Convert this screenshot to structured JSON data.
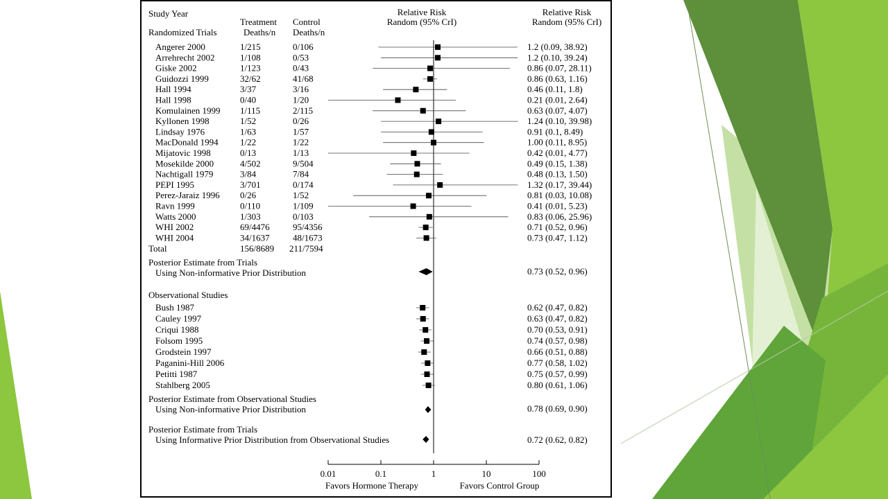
{
  "header": {
    "study_year": "Study Year",
    "randomized_trials": "Randomized Trials",
    "treatment_line1": "Treatment",
    "treatment_line2": "Deaths/n",
    "control_line1": "Control",
    "control_line2": "Deaths/n",
    "rr_center_line1": "Relative Risk",
    "rr_center_line2": "Random (95% CrI)",
    "rr_right_line1": "Relative Risk",
    "rr_right_line2": "Random (95% CrI)"
  },
  "sections": {
    "total_label": "Total",
    "total_treatment": "156/8689",
    "total_control": "211/7594",
    "posterior_trials_line1": "Posterior Estimate from Trials",
    "posterior_trials_line2": "Using Non-informative Prior Distribution",
    "posterior_trials_ci": "0.73 (0.52, 0.96)",
    "observational_header": "Observational Studies",
    "posterior_obs_line1": "Posterior Estimate from Observational Studies",
    "posterior_obs_line2": "Using Non-informative Prior Distribution",
    "posterior_obs_ci": "0.78 (0.69, 0.90)",
    "posterior_inf_line1": "Posterior Estimate from Trials",
    "posterior_inf_line2": "Using Informative Prior Distribution from Observational Studies",
    "posterior_inf_ci": "0.72 (0.62, 0.82)"
  },
  "axis": {
    "ticks": [
      "0.01",
      "0.1",
      "1",
      "10",
      "100"
    ],
    "left_label": "Favors Hormone Therapy",
    "right_label": "Favors Control Group"
  },
  "chart_data": {
    "type": "forest",
    "x_scale": "log",
    "xlim": [
      0.01,
      100
    ],
    "trials": [
      {
        "study": "Angerer 2000",
        "treatment": "1/215",
        "control": "0/106",
        "rr": 1.2,
        "lo": 0.09,
        "hi": 38.92,
        "ci_text": "1.2 (0.09, 38.92)"
      },
      {
        "study": "Arrehrecht 2002",
        "treatment": "1/108",
        "control": "0/53",
        "rr": 1.2,
        "lo": 0.1,
        "hi": 39.24,
        "ci_text": "1.2 (0.10, 39.24)"
      },
      {
        "study": "Giske 2002",
        "treatment": "1/123",
        "control": "0/43",
        "rr": 0.86,
        "lo": 0.07,
        "hi": 28.11,
        "ci_text": "0.86 (0.07, 28.11)"
      },
      {
        "study": "Guidozzi 1999",
        "treatment": "32/62",
        "control": "41/68",
        "rr": 0.86,
        "lo": 0.63,
        "hi": 1.16,
        "ci_text": "0.86 (0.63, 1.16)"
      },
      {
        "study": "Hall 1994",
        "treatment": "3/37",
        "control": "3/16",
        "rr": 0.46,
        "lo": 0.11,
        "hi": 1.8,
        "ci_text": "0.46 (0.11, 1.8)"
      },
      {
        "study": "Hall 1998",
        "treatment": "0/40",
        "control": "1/20",
        "rr": 0.21,
        "lo": 0.01,
        "hi": 2.64,
        "ci_text": "0.21 (0.01, 2.64)"
      },
      {
        "study": "Komulainen 1999",
        "treatment": "1/115",
        "control": "2/115",
        "rr": 0.63,
        "lo": 0.07,
        "hi": 4.07,
        "ci_text": "0.63 (0.07, 4.07)"
      },
      {
        "study": "Kyllonen 1998",
        "treatment": "1/52",
        "control": "0/26",
        "rr": 1.24,
        "lo": 0.1,
        "hi": 39.98,
        "ci_text": "1.24 (0.10, 39.98)"
      },
      {
        "study": "Lindsay 1976",
        "treatment": "1/63",
        "control": "1/57",
        "rr": 0.91,
        "lo": 0.1,
        "hi": 8.49,
        "ci_text": "0.91 (0.1, 8.49)"
      },
      {
        "study": "MacDonald 1994",
        "treatment": "1/22",
        "control": "1/22",
        "rr": 1.0,
        "lo": 0.11,
        "hi": 8.95,
        "ci_text": "1.00 (0.11, 8.95)"
      },
      {
        "study": "Mijatovic 1998",
        "treatment": "0/13",
        "control": "1/13",
        "rr": 0.42,
        "lo": 0.01,
        "hi": 4.77,
        "ci_text": "0.42 (0.01, 4.77)"
      },
      {
        "study": "Mosekilde 2000",
        "treatment": "4/502",
        "control": "9/504",
        "rr": 0.49,
        "lo": 0.15,
        "hi": 1.38,
        "ci_text": "0.49 (0.15, 1.38)"
      },
      {
        "study": "Nachtigall 1979",
        "treatment": "3/84",
        "control": "7/84",
        "rr": 0.48,
        "lo": 0.13,
        "hi": 1.5,
        "ci_text": "0.48 (0.13, 1.50)"
      },
      {
        "study": "PEPI 1995",
        "treatment": "3/701",
        "control": "0/174",
        "rr": 1.32,
        "lo": 0.17,
        "hi": 39.44,
        "ci_text": "1.32 (0.17, 39.44)"
      },
      {
        "study": "Perez-Jaraiz 1996",
        "treatment": "0/26",
        "control": "1/52",
        "rr": 0.81,
        "lo": 0.03,
        "hi": 10.08,
        "ci_text": "0.81 (0.03, 10.08)"
      },
      {
        "study": "Ravn 1999",
        "treatment": "0/110",
        "control": "1/109",
        "rr": 0.41,
        "lo": 0.01,
        "hi": 5.23,
        "ci_text": "0.41 (0.01, 5.23)"
      },
      {
        "study": "Watts 2000",
        "treatment": "1/303",
        "control": "0/103",
        "rr": 0.83,
        "lo": 0.06,
        "hi": 25.96,
        "ci_text": "0.83 (0.06, 25.96)"
      },
      {
        "study": "WHI 2002",
        "treatment": "69/4476",
        "control": "95/4356",
        "rr": 0.71,
        "lo": 0.52,
        "hi": 0.96,
        "ci_text": "0.71 (0.52, 0.96)"
      },
      {
        "study": "WHI 2004",
        "treatment": "34/1637",
        "control": "48/1673",
        "rr": 0.73,
        "lo": 0.47,
        "hi": 1.12,
        "ci_text": "0.73 (0.47, 1.12)"
      }
    ],
    "observational": [
      {
        "study": "Bush 1987",
        "rr": 0.62,
        "lo": 0.47,
        "hi": 0.82,
        "ci_text": "0.62 (0.47, 0.82)"
      },
      {
        "study": "Cauley 1997",
        "rr": 0.63,
        "lo": 0.47,
        "hi": 0.82,
        "ci_text": "0.63 (0.47, 0.82)"
      },
      {
        "study": "Criqui 1988",
        "rr": 0.7,
        "lo": 0.53,
        "hi": 0.91,
        "ci_text": "0.70 (0.53, 0.91)"
      },
      {
        "study": "Folsom 1995",
        "rr": 0.74,
        "lo": 0.57,
        "hi": 0.98,
        "ci_text": "0.74 (0.57, 0.98)"
      },
      {
        "study": "Grodstein 1997",
        "rr": 0.66,
        "lo": 0.51,
        "hi": 0.88,
        "ci_text": "0.66 (0.51, 0.88)"
      },
      {
        "study": "Paganini-Hill 2006",
        "rr": 0.77,
        "lo": 0.58,
        "hi": 1.02,
        "ci_text": "0.77 (0.58, 1.02)"
      },
      {
        "study": "Petitti 1987",
        "rr": 0.75,
        "lo": 0.57,
        "hi": 0.99,
        "ci_text": "0.75 (0.57, 0.99)"
      },
      {
        "study": "Stahlberg 2005",
        "rr": 0.8,
        "lo": 0.61,
        "hi": 1.06,
        "ci_text": "0.80 (0.61, 1.06)"
      }
    ],
    "posteriors": [
      {
        "name": "Posterior Estimate from Trials",
        "rr": 0.73,
        "lo": 0.52,
        "hi": 0.96
      },
      {
        "name": "Posterior Estimate from Observational Studies",
        "rr": 0.78,
        "lo": 0.69,
        "hi": 0.9
      },
      {
        "name": "Posterior Estimate from Trials (informative prior)",
        "rr": 0.72,
        "lo": 0.62,
        "hi": 0.82
      }
    ]
  },
  "theme": {
    "green_dark": "#5e8f3a",
    "green_mid": "#77b53a",
    "green_bright": "#8dc63f",
    "green_light": "#c5e0a5"
  }
}
